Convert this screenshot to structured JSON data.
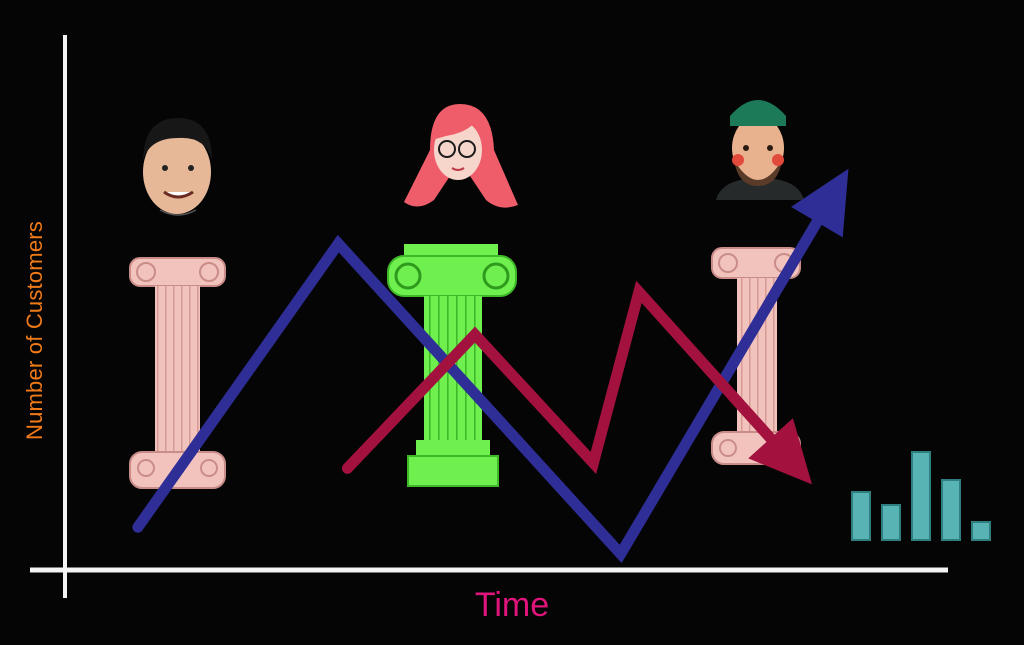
{
  "colors": {
    "background": "#050505",
    "axis": "#f4f4f4",
    "series_blue": "#2e2e96",
    "series_red": "#a3113f",
    "ylabel": "#f07a18",
    "xlabel": "#e0147a",
    "pillar_pink": "#f2c3bd",
    "pillar_green": "#6ff04f",
    "icon_bars": "#58b4b4"
  },
  "chart_data": {
    "type": "line",
    "xlabel": "Time",
    "ylabel": "Number of Customers",
    "grid": false,
    "xlim": [
      0,
      10
    ],
    "ylim": [
      0,
      10
    ],
    "series": [
      {
        "x": [
          0.8,
          3.0,
          6.1,
          8.6
        ],
        "y": [
          0.8,
          6.1,
          0.3,
          7.5
        ],
        "arrow": true
      },
      {
        "x": [
          3.1,
          4.5,
          5.8,
          6.3,
          8.2
        ],
        "y": [
          1.9,
          4.4,
          2.0,
          5.2,
          1.6
        ],
        "arrow": true
      }
    ]
  },
  "illustrations": {
    "pillars": [
      "pink-ionic-column",
      "green-ionic-column",
      "pink-ionic-column"
    ],
    "people": [
      "man-avatar",
      "woman-with-glasses-avatar",
      "bearded-man-beanie-avatar"
    ],
    "corner_icon": "bar-chart-icon"
  }
}
